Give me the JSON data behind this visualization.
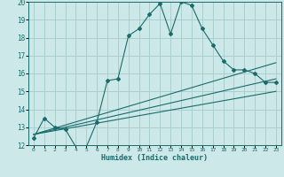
{
  "title": "",
  "xlabel": "Humidex (Indice chaleur)",
  "xlim": [
    -0.5,
    23.5
  ],
  "ylim": [
    12,
    20
  ],
  "xticks": [
    0,
    1,
    2,
    3,
    4,
    5,
    6,
    7,
    8,
    9,
    10,
    11,
    12,
    13,
    14,
    15,
    16,
    17,
    18,
    19,
    20,
    21,
    22,
    23
  ],
  "yticks": [
    12,
    13,
    14,
    15,
    16,
    17,
    18,
    19,
    20
  ],
  "bg_color": "#cde8e8",
  "line_color": "#1a6b6b",
  "grid_color": "#aacfcf",
  "main_line": {
    "x": [
      0,
      1,
      2,
      3,
      4,
      5,
      6,
      7,
      8,
      9,
      10,
      11,
      12,
      13,
      14,
      15,
      16,
      17,
      18,
      19,
      20,
      21,
      22,
      23
    ],
    "y": [
      12.4,
      13.5,
      13.0,
      12.9,
      11.9,
      11.9,
      13.3,
      15.6,
      15.7,
      18.1,
      18.5,
      19.3,
      19.9,
      18.2,
      20.0,
      19.8,
      18.5,
      17.6,
      16.7,
      16.2,
      16.2,
      16.0,
      15.5,
      15.5
    ]
  },
  "trend_line1": {
    "x": [
      0,
      23
    ],
    "y": [
      12.6,
      16.6
    ]
  },
  "trend_line2": {
    "x": [
      0,
      23
    ],
    "y": [
      12.6,
      15.7
    ]
  },
  "trend_line3": {
    "x": [
      0,
      23
    ],
    "y": [
      12.6,
      15.0
    ]
  }
}
